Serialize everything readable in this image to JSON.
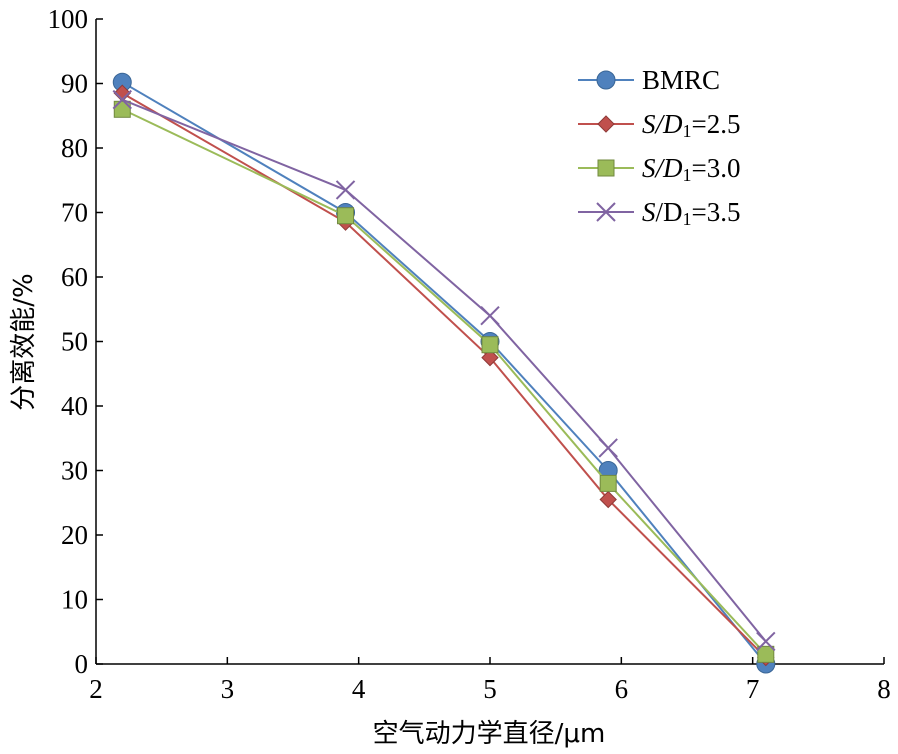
{
  "chart_data": {
    "type": "line",
    "xlabel": "空气动力学直径/μm",
    "ylabel": "分离效能/%",
    "xlim": [
      2,
      8
    ],
    "ylim": [
      0,
      100
    ],
    "x_ticks": [
      "2",
      "3",
      "4",
      "5",
      "6",
      "7",
      "8"
    ],
    "y_ticks": [
      "0",
      "10",
      "20",
      "30",
      "40",
      "50",
      "60",
      "70",
      "80",
      "90",
      "100"
    ],
    "grid": false,
    "legend_position": "top-right",
    "series": [
      {
        "name": "BMRC",
        "legend": {
          "prefix": "BMRC",
          "italic": "",
          "letter": "",
          "sub": "",
          "suffix": ""
        },
        "color": "#4f81bd",
        "marker": "circle",
        "x": [
          2.2,
          3.9,
          5.0,
          5.9,
          7.1
        ],
        "y": [
          90.2,
          70.0,
          50.0,
          30.0,
          0.0
        ]
      },
      {
        "name": "S/D1=2.5",
        "legend": {
          "prefix": "",
          "italic": "S",
          "letter": "/D",
          "sub": "1",
          "suffix": "=2.5"
        },
        "color": "#c0504d",
        "marker": "diamond",
        "x": [
          2.2,
          3.9,
          5.0,
          5.9,
          7.1
        ],
        "y": [
          88.5,
          68.5,
          47.5,
          25.5,
          1.0
        ]
      },
      {
        "name": "S/D1=3.0",
        "legend": {
          "prefix": "",
          "italic": "S",
          "letter": "/D",
          "sub": "1",
          "suffix": "=3.0"
        },
        "color": "#9bbb59",
        "marker": "square",
        "x": [
          2.2,
          3.9,
          5.0,
          5.9,
          7.1
        ],
        "y": [
          86.0,
          69.5,
          49.5,
          28.0,
          1.5
        ]
      },
      {
        "name": "S/D1=3.5",
        "legend": {
          "prefix": "",
          "italic": "S",
          "letter": "/D",
          "sub": "1",
          "suffix": "=3.5"
        },
        "color": "#8064a2",
        "marker": "x",
        "x": [
          2.2,
          3.9,
          5.0,
          5.9,
          7.1
        ],
        "y": [
          87.5,
          73.5,
          54.0,
          33.5,
          3.5
        ]
      }
    ]
  }
}
